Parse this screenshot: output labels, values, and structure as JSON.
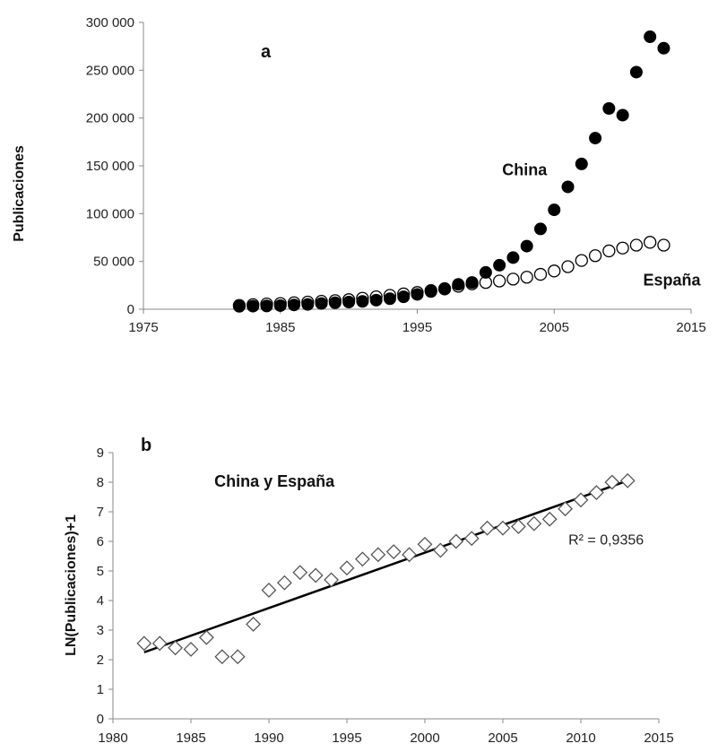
{
  "chart_data": [
    {
      "panel_label": "a",
      "type": "scatter",
      "ylabel": "Publicaciones",
      "xlim": [
        1975,
        2015
      ],
      "ylim": [
        0,
        300000
      ],
      "xticks": [
        1975,
        1985,
        1995,
        2005,
        2015
      ],
      "yticks": [
        0,
        50000,
        100000,
        150000,
        200000,
        250000,
        300000
      ],
      "grid": false,
      "legend": "none",
      "annotations": [
        {
          "text": "China",
          "x": 2001.2,
          "y": 140000
        },
        {
          "text": "España",
          "x": 2011.5,
          "y": 25000
        }
      ],
      "series": [
        {
          "name": "China",
          "marker": "filled-circle",
          "color": "#000000",
          "points": [
            [
              1982,
              3000
            ],
            [
              1983,
              3200
            ],
            [
              1984,
              3400
            ],
            [
              1985,
              3800
            ],
            [
              1986,
              4500
            ],
            [
              1987,
              5000
            ],
            [
              1988,
              6000
            ],
            [
              1989,
              6800
            ],
            [
              1990,
              7500
            ],
            [
              1991,
              8200
            ],
            [
              1992,
              9500
            ],
            [
              1993,
              11000
            ],
            [
              1994,
              13000
            ],
            [
              1995,
              15500
            ],
            [
              1996,
              18500
            ],
            [
              1997,
              21000
            ],
            [
              1998,
              26000
            ],
            [
              1999,
              28000
            ],
            [
              2000,
              38500
            ],
            [
              2001,
              46000
            ],
            [
              2002,
              54000
            ],
            [
              2003,
              66000
            ],
            [
              2004,
              84000
            ],
            [
              2005,
              104000
            ],
            [
              2006,
              128000
            ],
            [
              2007,
              152000
            ],
            [
              2008,
              179000
            ],
            [
              2009,
              210000
            ],
            [
              2010,
              203000
            ],
            [
              2011,
              248000
            ],
            [
              2012,
              285000
            ],
            [
              2013,
              273000
            ]
          ]
        },
        {
          "name": "España",
          "marker": "open-circle",
          "color": "#000000",
          "points": [
            [
              1982,
              4000
            ],
            [
              1983,
              4800
            ],
            [
              1984,
              5500
            ],
            [
              1985,
              6000
            ],
            [
              1986,
              6800
            ],
            [
              1987,
              7500
            ],
            [
              1988,
              8300
            ],
            [
              1989,
              9000
            ],
            [
              1990,
              10000
            ],
            [
              1991,
              11500
            ],
            [
              1992,
              13000
            ],
            [
              1993,
              14500
            ],
            [
              1994,
              16000
            ],
            [
              1995,
              17500
            ],
            [
              1996,
              19500
            ],
            [
              1997,
              21500
            ],
            [
              1998,
              24000
            ],
            [
              1999,
              26500
            ],
            [
              2000,
              28000
            ],
            [
              2001,
              29500
            ],
            [
              2002,
              31500
            ],
            [
              2003,
              33500
            ],
            [
              2004,
              36500
            ],
            [
              2005,
              40000
            ],
            [
              2006,
              44500
            ],
            [
              2007,
              51000
            ],
            [
              2008,
              56000
            ],
            [
              2009,
              61000
            ],
            [
              2010,
              64000
            ],
            [
              2011,
              67000
            ],
            [
              2012,
              70000
            ],
            [
              2013,
              67000
            ]
          ]
        }
      ]
    },
    {
      "panel_label": "b",
      "type": "scatter",
      "ylabel": "LN(Publicaciones)+1",
      "xlim": [
        1980,
        2015
      ],
      "ylim": [
        0,
        9
      ],
      "xticks": [
        1980,
        1985,
        1990,
        1995,
        2000,
        2005,
        2010,
        2015
      ],
      "yticks": [
        0,
        1,
        2,
        3,
        4,
        5,
        6,
        7,
        8,
        9
      ],
      "grid": false,
      "legend": "none",
      "annotations": [
        {
          "text": "China y España",
          "x": 1986.5,
          "y": 7.85
        },
        {
          "text": "R² = 0,9356",
          "x": 2009.2,
          "y": 5.9
        }
      ],
      "series": [
        {
          "marker": "open-diamond",
          "color": "#000000",
          "points": [
            [
              1982,
              2.55
            ],
            [
              1983,
              2.55
            ],
            [
              1984,
              2.4
            ],
            [
              1985,
              2.35
            ],
            [
              1986,
              2.75
            ],
            [
              1987,
              2.1
            ],
            [
              1988,
              2.1
            ],
            [
              1989,
              3.2
            ],
            [
              1990,
              4.35
            ],
            [
              1991,
              4.6
            ],
            [
              1992,
              4.95
            ],
            [
              1993,
              4.85
            ],
            [
              1994,
              4.7
            ],
            [
              1995,
              5.1
            ],
            [
              1996,
              5.4
            ],
            [
              1997,
              5.55
            ],
            [
              1998,
              5.65
            ],
            [
              1999,
              5.55
            ],
            [
              2000,
              5.9
            ],
            [
              2001,
              5.7
            ],
            [
              2002,
              6.0
            ],
            [
              2003,
              6.1
            ],
            [
              2004,
              6.45
            ],
            [
              2005,
              6.45
            ],
            [
              2006,
              6.5
            ],
            [
              2007,
              6.6
            ],
            [
              2008,
              6.75
            ],
            [
              2009,
              7.1
            ],
            [
              2010,
              7.4
            ],
            [
              2011,
              7.65
            ],
            [
              2012,
              8.0
            ],
            [
              2013,
              8.05
            ]
          ]
        }
      ],
      "trendline": {
        "type": "linear",
        "x_start": 1982,
        "x_end": 2013,
        "y_start": 2.25,
        "y_end": 8.05,
        "r_squared": "0,9356"
      }
    }
  ]
}
